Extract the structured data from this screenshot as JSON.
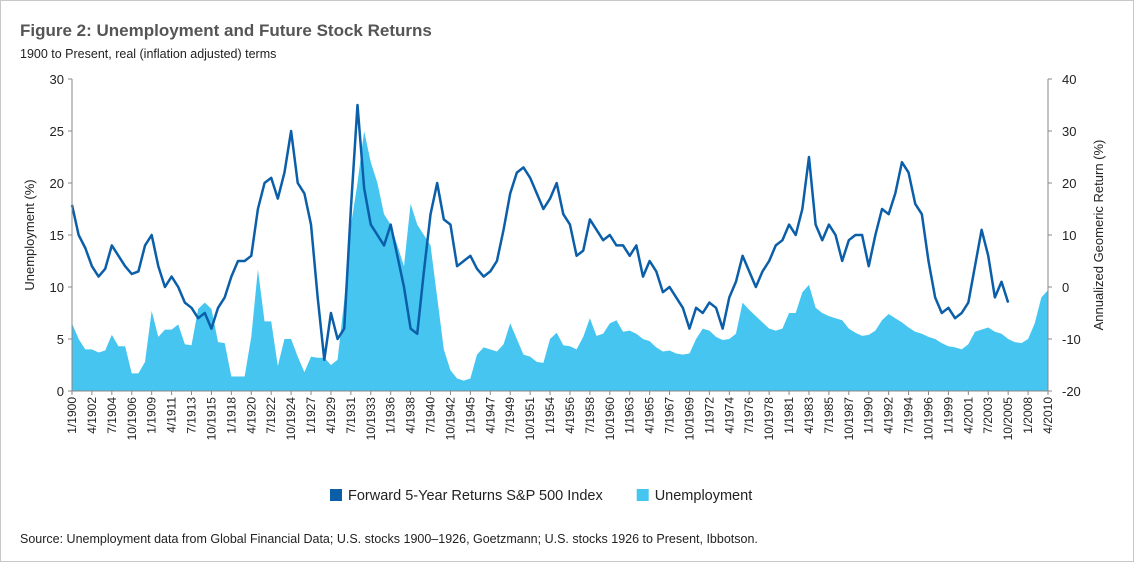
{
  "chart_data": {
    "type": "area-line",
    "title": "Figure 2: Unemployment and Future Stock Returns",
    "subtitle": "1900 to Present, real (inflation adjusted) terms",
    "ylabel": "Unemployment (%)",
    "y2label": "Annualized Geomeric Return (%)",
    "source": "Source: Unemployment data from Global Financial Data; U.S. stocks 1900–1926, Goetzmann; U.S. stocks 1926 to Present, Ibbotson.",
    "categories": [
      "1/1900",
      null,
      null,
      "4/1902",
      null,
      null,
      "7/1904",
      null,
      null,
      "10/1906",
      null,
      null,
      "1/1909",
      null,
      null,
      "4/1911",
      null,
      null,
      "7/1913",
      null,
      null,
      "10/1915",
      null,
      null,
      "1/1918",
      null,
      null,
      "4/1920",
      null,
      null,
      "7/1922",
      null,
      null,
      "10/1924",
      null,
      null,
      "1/1927",
      null,
      null,
      "4/1929",
      null,
      null,
      "7/1931",
      null,
      null,
      "10/1933",
      null,
      null,
      "1/1936",
      null,
      null,
      "4/1938",
      null,
      null,
      "7/1940",
      null,
      null,
      "10/1942",
      null,
      null,
      "1/1945",
      null,
      null,
      "4/1947",
      null,
      null,
      "7/1949",
      null,
      null,
      "10/1951",
      null,
      null,
      "1/1954",
      null,
      null,
      "4/1956",
      null,
      null,
      "7/1958",
      null,
      null,
      "10/1960",
      null,
      null,
      "1/1963",
      null,
      null,
      "4/1965",
      null,
      null,
      "7/1967",
      null,
      null,
      "10/1969",
      null,
      null,
      "1/1972",
      null,
      null,
      "4/1974",
      null,
      null,
      "7/1976",
      null,
      null,
      "10/1978",
      null,
      null,
      "1/1981",
      null,
      null,
      "4/1983",
      null,
      null,
      "7/1985",
      null,
      null,
      "10/1987",
      null,
      null,
      "1/1990",
      null,
      null,
      "4/1992",
      null,
      null,
      "7/1994",
      null,
      null,
      "10/1996",
      null,
      null,
      "1/1999",
      null,
      null,
      "4/2001",
      null,
      null,
      "7/2003",
      null,
      null,
      "10/2005",
      null,
      null,
      "1/2008",
      null,
      null,
      "4/2010"
    ],
    "series": [
      {
        "name": "Forward 5-Year Returns S&P 500 Index",
        "color": "#0b5ea8",
        "axis": "y2",
        "kind": "line",
        "values": [
          15.8,
          10,
          7.5,
          4,
          2,
          3.5,
          8,
          6,
          4,
          2.5,
          3,
          8,
          10,
          4,
          0,
          2,
          0,
          -3,
          -4,
          -6,
          -5,
          -8,
          -4,
          -2,
          2,
          5,
          5,
          6,
          15,
          20,
          21,
          17,
          22,
          30,
          20,
          18,
          12,
          -2,
          -14,
          -5,
          -10,
          -8,
          15,
          35,
          19,
          12,
          10,
          8,
          12,
          6,
          0,
          -8,
          -9,
          3,
          14,
          20,
          13,
          12,
          4,
          5,
          6,
          3.5,
          2,
          3,
          5,
          11,
          18,
          22,
          23,
          21,
          18,
          15,
          17,
          20,
          14,
          12,
          6,
          7,
          13,
          11,
          9,
          10,
          8,
          8,
          6,
          8,
          2,
          5,
          3,
          -1,
          0,
          -2,
          -4,
          -8,
          -4,
          -5,
          -3,
          -4,
          -8,
          -2,
          1,
          6,
          3,
          0,
          3,
          5,
          8,
          9,
          12,
          10,
          15,
          25,
          12,
          9,
          12,
          10,
          5,
          9,
          10,
          10,
          4,
          10,
          15,
          14,
          18,
          24,
          22,
          16,
          14,
          5,
          -2,
          -5,
          -4,
          -6,
          -5,
          -3,
          4,
          11,
          6,
          -2,
          1,
          -3,
          null,
          null,
          null,
          null,
          null,
          null
        ]
      },
      {
        "name": "Unemployment",
        "color": "#45c5f0",
        "kind": "area",
        "values": [
          6.5,
          5,
          4,
          4,
          3.7,
          3.9,
          5.4,
          4.3,
          4.3,
          1.7,
          1.7,
          2.8,
          7.7,
          5.2,
          5.9,
          5.9,
          6.4,
          4.5,
          4.4,
          7.9,
          8.5,
          7.9,
          4.7,
          4.6,
          1.4,
          1.4,
          1.4,
          5.2,
          11.7,
          6.7,
          6.7,
          2.4,
          5,
          5,
          3.3,
          1.8,
          3.3,
          3.2,
          3.2,
          2.5,
          3,
          8.7,
          15.9,
          20,
          25,
          22,
          20,
          17,
          16,
          14,
          12,
          18,
          16,
          15,
          14,
          9,
          4,
          2,
          1.2,
          1,
          1.2,
          3.5,
          4.2,
          4,
          3.8,
          4.5,
          6.5,
          5,
          3.5,
          3.3,
          2.8,
          2.7,
          5,
          5.6,
          4.4,
          4.3,
          4,
          5.2,
          7,
          5.3,
          5.5,
          6.5,
          6.8,
          5.7,
          5.8,
          5.5,
          5,
          4.8,
          4.2,
          3.8,
          3.9,
          3.6,
          3.5,
          3.6,
          5,
          6,
          5.8,
          5.2,
          4.9,
          5,
          5.5,
          8.5,
          7.8,
          7.2,
          6.6,
          6,
          5.8,
          6,
          7.5,
          7.5,
          9.5,
          10.2,
          8,
          7.5,
          7.2,
          7,
          6.8,
          6,
          5.6,
          5.3,
          5.4,
          5.8,
          6.8,
          7.4,
          7,
          6.6,
          6.1,
          5.7,
          5.5,
          5.2,
          5,
          4.6,
          4.3,
          4.2,
          4,
          4.5,
          5.7,
          5.9,
          6.1,
          5.7,
          5.5,
          5,
          4.7,
          4.6,
          5,
          6.5,
          9,
          9.7
        ]
      }
    ],
    "ylim": [
      0,
      30
    ],
    "yticks": [
      0,
      5,
      10,
      15,
      20,
      25,
      30
    ],
    "y2lim": [
      -20,
      40
    ],
    "y2ticks": [
      -20,
      -10,
      0,
      10,
      20,
      30,
      40
    ],
    "grid": false,
    "legend": "bottom"
  }
}
